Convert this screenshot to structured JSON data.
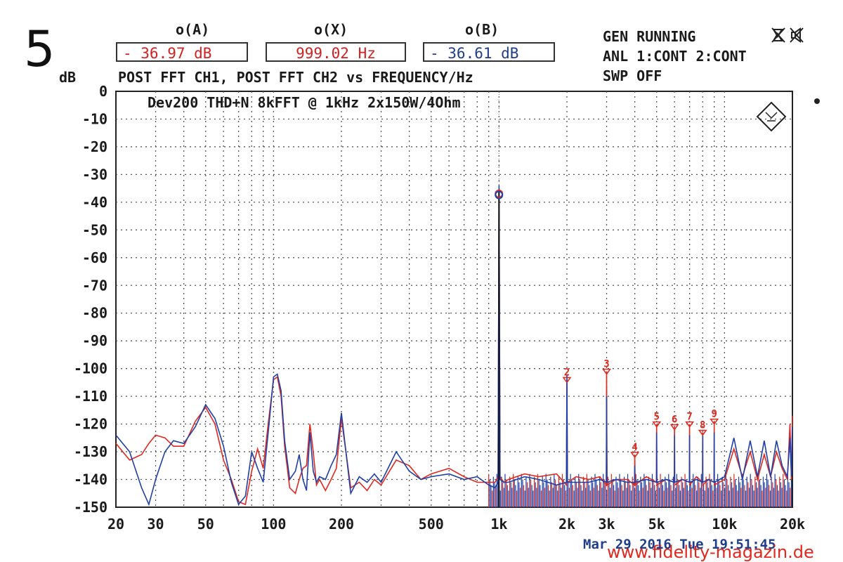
{
  "panel_number": "5",
  "cursors": {
    "a": {
      "label": "o(A)",
      "value": "- 36.97 dB"
    },
    "x": {
      "label": "o(X)",
      "value": "999.02  Hz"
    },
    "b": {
      "label": "o(B)",
      "value": "- 36.61 dB"
    }
  },
  "header": {
    "unit": "dB",
    "description": "POST FFT CH1, POST FFT CH2 vs  FREQUENCY/Hz"
  },
  "status": {
    "line1": "GEN RUNNING",
    "line2": "ANL 1:CONT 2:CONT",
    "line3": "SWP OFF",
    "icons": [
      "generator-off-icon",
      "speaker-muted-icon"
    ]
  },
  "timestamp": "Mar 29 2016 Tue 19:51:45",
  "watermark": "www.fidelity-magazin.de",
  "colors": {
    "ch1": "#e0281e",
    "ch2": "#1f3fa8",
    "grid": "#555555",
    "text": "#1a1a1a",
    "readout_red": "#d42020",
    "readout_blue": "#1f3d8a"
  },
  "chart_data": {
    "type": "line",
    "title": "Dev200 THD+N 8kFFT @ 1kHz 2x150W/4Ohm",
    "xlabel": "FREQUENCY/Hz",
    "ylabel": "dB",
    "xscale": "log",
    "xlim": [
      20,
      20000
    ],
    "ylim": [
      -150,
      0
    ],
    "grid": true,
    "legend": "none",
    "x_ticks": [
      20,
      30,
      50,
      100,
      200,
      500,
      1000,
      2000,
      3000,
      5000,
      10000,
      20000
    ],
    "x_tick_labels": [
      "20",
      "30",
      "50",
      "100",
      "200",
      "500",
      "1k",
      "2k",
      "3k",
      "5k",
      "10k",
      "20k"
    ],
    "y_ticks": [
      0,
      -10,
      -20,
      -30,
      -40,
      -50,
      -60,
      -70,
      -80,
      -90,
      -100,
      -110,
      -120,
      -130,
      -140,
      -150
    ],
    "y_tick_labels": [
      "0",
      "-10",
      "-20",
      "-30",
      "-40",
      "-50",
      "-60",
      "-70",
      "-80",
      "-90",
      "-100",
      "-110",
      "-120",
      "-130",
      "-140",
      "-150"
    ],
    "series": [
      {
        "name": "POST FFT CH1",
        "color": "#e0281e",
        "x": [
          20,
          23,
          26,
          28,
          30,
          33,
          36,
          40,
          45,
          50,
          55,
          60,
          65,
          70,
          75,
          80,
          85,
          90,
          95,
          100,
          104,
          108,
          112,
          118,
          125,
          130,
          135,
          140,
          145,
          150,
          155,
          160,
          170,
          180,
          190,
          200,
          220,
          240,
          260,
          280,
          300,
          350,
          400,
          450,
          500,
          600,
          700,
          800,
          900,
          960,
          990,
          1000,
          1010,
          1050,
          1100,
          1300,
          1500,
          1800,
          1990,
          2000,
          2010,
          2200,
          2500,
          2800,
          2990,
          3000,
          3010,
          3300,
          3700,
          3990,
          4000,
          4010,
          4500,
          4990,
          5000,
          5010,
          5500,
          5990,
          6000,
          6010,
          6500,
          6990,
          7000,
          7010,
          7500,
          7990,
          8000,
          8010,
          8500,
          8990,
          9000,
          9010,
          10000,
          11000,
          12000,
          13000,
          14000,
          15000,
          16000,
          17000,
          18000,
          19000,
          19500,
          19800,
          20000
        ],
        "y": [
          -127,
          -133,
          -131,
          -127,
          -124,
          -125,
          -128,
          -128,
          -119,
          -114,
          -120,
          -133,
          -140,
          -148,
          -149,
          -137,
          -129,
          -136,
          -119,
          -104,
          -103,
          -110,
          -128,
          -143,
          -145,
          -140,
          -136,
          -135,
          -120,
          -130,
          -142,
          -140,
          -144,
          -140,
          -136,
          -118,
          -143,
          -141,
          -144,
          -140,
          -142,
          -133,
          -135,
          -140,
          -138,
          -136,
          -139,
          -141,
          -141,
          -141,
          -139,
          -35,
          -139,
          -141,
          -140,
          -138,
          -139,
          -138,
          -142,
          -104,
          -141,
          -139,
          -140,
          -139,
          -142,
          -101,
          -142,
          -140,
          -140,
          -142,
          -131,
          -142,
          -139,
          -141,
          -120,
          -142,
          -140,
          -141,
          -121,
          -142,
          -140,
          -141,
          -120,
          -142,
          -139,
          -141,
          -123,
          -142,
          -140,
          -141,
          -119,
          -142,
          -140,
          -129,
          -139,
          -130,
          -140,
          -131,
          -139,
          -130,
          -136,
          -140,
          -120,
          -140,
          -117
        ]
      },
      {
        "name": "POST FFT CH2",
        "color": "#1f3fa8",
        "x": [
          20,
          23,
          26,
          28,
          30,
          33,
          36,
          40,
          45,
          50,
          55,
          60,
          65,
          70,
          75,
          80,
          85,
          90,
          95,
          100,
          104,
          108,
          112,
          118,
          125,
          130,
          135,
          140,
          145,
          150,
          155,
          160,
          170,
          180,
          190,
          200,
          220,
          240,
          260,
          280,
          300,
          350,
          400,
          450,
          500,
          600,
          700,
          800,
          900,
          960,
          990,
          1000,
          1010,
          1050,
          1100,
          1300,
          1500,
          1800,
          1990,
          2000,
          2010,
          2200,
          2500,
          2800,
          2990,
          3000,
          3010,
          3300,
          3700,
          3990,
          4000,
          4010,
          4500,
          4990,
          5000,
          5010,
          5500,
          5990,
          6000,
          6010,
          6500,
          6990,
          7000,
          7010,
          7500,
          7990,
          8000,
          8010,
          8500,
          8990,
          9000,
          9010,
          10000,
          11000,
          12000,
          13000,
          14000,
          15000,
          16000,
          17000,
          18000,
          19000,
          19500,
          19800,
          20000
        ],
        "y": [
          -124,
          -130,
          -143,
          -149,
          -140,
          -130,
          -126,
          -127,
          -121,
          -113,
          -118,
          -128,
          -141,
          -149,
          -146,
          -130,
          -136,
          -141,
          -122,
          -103,
          -102,
          -108,
          -126,
          -140,
          -137,
          -131,
          -140,
          -144,
          -123,
          -137,
          -141,
          -139,
          -140,
          -135,
          -131,
          -116,
          -145,
          -139,
          -141,
          -138,
          -141,
          -130,
          -137,
          -140,
          -139,
          -138,
          -140,
          -139,
          -142,
          -143,
          -141,
          -34,
          -140,
          -141,
          -141,
          -139,
          -140,
          -142,
          -141,
          -102,
          -141,
          -141,
          -141,
          -140,
          -141,
          -110,
          -141,
          -140,
          -141,
          -141,
          -135,
          -141,
          -140,
          -141,
          -123,
          -141,
          -140,
          -141,
          -124,
          -141,
          -140,
          -141,
          -124,
          -141,
          -140,
          -141,
          -124,
          -141,
          -140,
          -141,
          -123,
          -141,
          -139,
          -125,
          -140,
          -126,
          -139,
          -126,
          -139,
          -126,
          -135,
          -139,
          -125,
          -139,
          -121
        ]
      }
    ],
    "harmonic_markers": [
      {
        "label": "2",
        "x": 2000,
        "y": -104
      },
      {
        "label": "3",
        "x": 3000,
        "y": -101
      },
      {
        "label": "4",
        "x": 4000,
        "y": -131
      },
      {
        "label": "5",
        "x": 5000,
        "y": -120
      },
      {
        "label": "6",
        "x": 6000,
        "y": -121
      },
      {
        "label": "7",
        "x": 7000,
        "y": -120
      },
      {
        "label": "8",
        "x": 8000,
        "y": -123
      },
      {
        "label": "9",
        "x": 9000,
        "y": -119
      }
    ],
    "cursor_x": 999.02,
    "cursor_levels_db": [
      -36.97,
      -36.61
    ]
  }
}
